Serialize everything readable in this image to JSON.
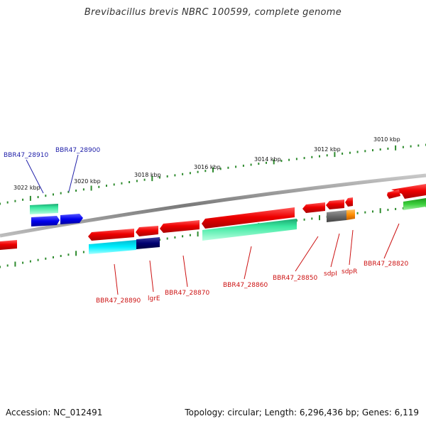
{
  "title": "Brevibacillus brevis NBRC 100599, complete genome",
  "footer": {
    "accession": "Accession: NC_012491",
    "topology": "Topology: circular; Length: 6,296,436 bp; Genes: 6,119"
  },
  "scale_labels": [
    "3022 kbp",
    "3020 kbp",
    "3018 kbp",
    "3016 kbp",
    "3014 kbp",
    "3012 kbp",
    "3010 kbp"
  ],
  "colors": {
    "backbone": "#888888",
    "tick": "#2e8b2e",
    "forward_label": "#2222aa",
    "reverse_label": "#cc1111"
  },
  "gene_labels": {
    "forward": [
      "BBR47_28910",
      "BBR47_28900"
    ],
    "reverse": [
      "BBR47_28890",
      "lgrE",
      "BBR47_28870",
      "BBR47_28860",
      "BBR47_28850",
      "sdpI",
      "sdpR",
      "BBR47_28820"
    ]
  }
}
